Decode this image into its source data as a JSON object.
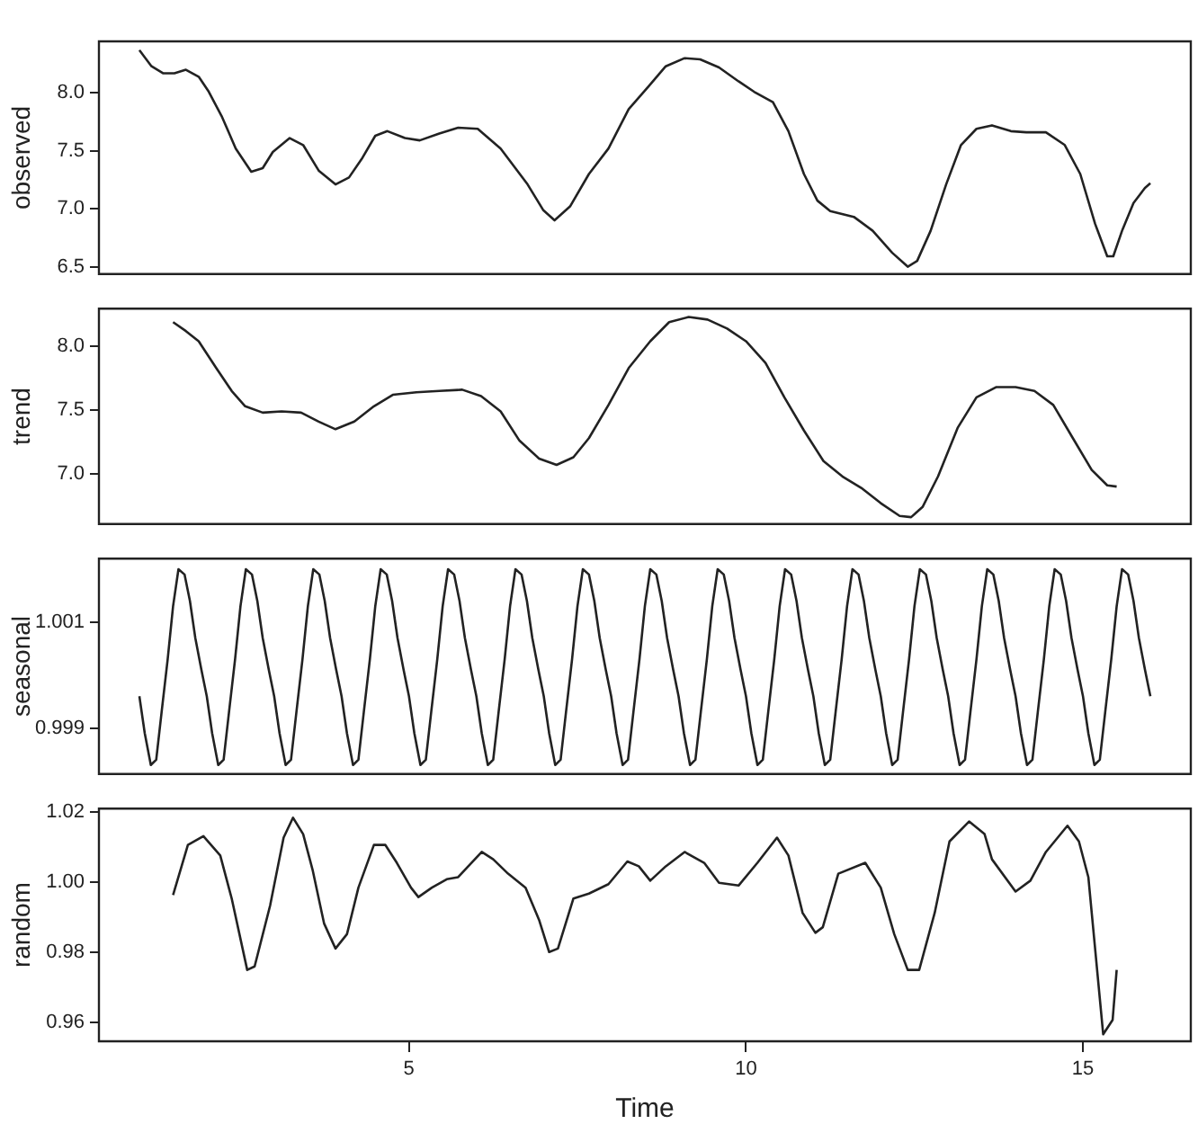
{
  "chart_data": [
    {
      "type": "line",
      "ylabel": "observed",
      "xlim": [
        0.4,
        16.6
      ],
      "xticks": [
        5,
        10,
        15
      ],
      "ylim": [
        6.436,
        8.445
      ],
      "yticks": [
        6.5,
        {
          "value": 7,
          "label": "7.0"
        },
        7.5,
        {
          "value": 8,
          "label": "8.0"
        }
      ],
      "tick_labels": "y",
      "series": [
        {
          "color": "#222222",
          "x": [
            1,
            1.18,
            1.35,
            1.52,
            1.69,
            1.88,
            2.03,
            2.22,
            2.43,
            2.66,
            2.83,
            2.98,
            3.23,
            3.43,
            3.66,
            3.91,
            4.11,
            4.31,
            4.5,
            4.68,
            4.94,
            5.16,
            5.45,
            5.73,
            6.02,
            6.36,
            6.76,
            6.99,
            7.16,
            7.39,
            7.67,
            7.96,
            8.26,
            8.56,
            8.81,
            9.09,
            9.32,
            9.6,
            9.89,
            10.12,
            10.4,
            10.63,
            10.86,
            11.06,
            11.25,
            11.6,
            11.88,
            12.17,
            12.4,
            12.54,
            12.74,
            12.97,
            13.19,
            13.42,
            13.65,
            13.93,
            14.16,
            14.45,
            14.73,
            14.96,
            15.18,
            15.36,
            15.45,
            15.58,
            15.75,
            15.92,
            16
          ],
          "values": [
            8.37,
            8.23,
            8.17,
            8.17,
            8.2,
            8.14,
            8.01,
            7.8,
            7.52,
            7.32,
            7.35,
            7.49,
            7.61,
            7.55,
            7.33,
            7.21,
            7.27,
            7.44,
            7.63,
            7.67,
            7.61,
            7.59,
            7.65,
            7.7,
            7.69,
            7.52,
            7.21,
            6.99,
            6.9,
            7.02,
            7.3,
            7.52,
            7.86,
            8.06,
            8.23,
            8.3,
            8.29,
            8.22,
            8.1,
            8.01,
            7.92,
            7.67,
            7.3,
            7.07,
            6.98,
            6.93,
            6.81,
            6.62,
            6.5,
            6.55,
            6.81,
            7.21,
            7.55,
            7.69,
            7.72,
            7.67,
            7.66,
            7.66,
            7.55,
            7.3,
            6.87,
            6.59,
            6.59,
            6.81,
            7.05,
            7.18,
            7.22
          ]
        }
      ]
    },
    {
      "type": "line",
      "ylabel": "trend",
      "xlim": [
        0.4,
        16.6
      ],
      "xticks": [
        5,
        10,
        15
      ],
      "ylim": [
        6.606,
        8.296
      ],
      "yticks": [
        {
          "value": 7,
          "label": "7.0"
        },
        7.5,
        {
          "value": 8,
          "label": "8.0"
        }
      ],
      "tick_labels": "y",
      "series": [
        {
          "color": "#222222",
          "x": [
            1.5,
            1.69,
            1.88,
            2.14,
            2.37,
            2.57,
            2.83,
            3.11,
            3.4,
            3.66,
            3.91,
            4.19,
            4.48,
            4.76,
            5.11,
            5.45,
            5.79,
            6.07,
            6.36,
            6.64,
            6.93,
            7.19,
            7.44,
            7.67,
            7.96,
            8.26,
            8.58,
            8.86,
            9.15,
            9.43,
            9.72,
            10,
            10.29,
            10.57,
            10.86,
            11.15,
            11.43,
            11.71,
            12,
            12.28,
            12.45,
            12.62,
            12.85,
            13.14,
            13.42,
            13.71,
            14,
            14.28,
            14.56,
            14.85,
            15.13,
            15.36,
            15.5
          ],
          "values": [
            8.19,
            8.12,
            8.04,
            7.83,
            7.65,
            7.53,
            7.48,
            7.49,
            7.48,
            7.41,
            7.35,
            7.41,
            7.53,
            7.62,
            7.64,
            7.65,
            7.66,
            7.61,
            7.49,
            7.26,
            7.12,
            7.07,
            7.13,
            7.28,
            7.54,
            7.83,
            8.04,
            8.19,
            8.23,
            8.21,
            8.14,
            8.04,
            7.87,
            7.6,
            7.34,
            7.1,
            6.98,
            6.89,
            6.77,
            6.67,
            6.66,
            6.74,
            6.98,
            7.36,
            7.6,
            7.68,
            7.68,
            7.65,
            7.54,
            7.28,
            7.03,
            6.91,
            6.9
          ]
        }
      ]
    },
    {
      "type": "line",
      "ylabel": "seasonal",
      "xlim": [
        0.4,
        16.6
      ],
      "xticks": [
        5,
        10,
        15
      ],
      "ylim": [
        0.99813,
        1.0022
      ],
      "yticks": [
        0.999,
        1.001
      ],
      "tick_labels": "y",
      "series": [
        {
          "color": "#222222",
          "x": [
            1,
            1.08,
            1.17,
            1.25,
            1.33,
            1.42,
            1.5,
            1.58,
            1.67,
            1.75,
            1.83,
            1.92,
            2,
            2.08,
            2.17,
            2.25,
            2.33,
            2.42,
            2.5,
            2.58,
            2.67,
            2.75,
            2.83,
            2.92,
            3,
            3.08,
            3.17,
            3.25,
            3.33,
            3.42,
            3.5,
            3.58,
            3.67,
            3.75,
            3.83,
            3.92,
            4,
            4.08,
            4.17,
            4.25,
            4.33,
            4.42,
            4.5,
            4.58,
            4.67,
            4.75,
            4.83,
            4.92,
            5,
            5.08,
            5.17,
            5.25,
            5.33,
            5.42,
            5.5,
            5.58,
            5.67,
            5.75,
            5.83,
            5.92,
            6,
            6.08,
            6.17,
            6.25,
            6.33,
            6.42,
            6.5,
            6.58,
            6.67,
            6.75,
            6.83,
            6.92,
            7,
            7.08,
            7.17,
            7.25,
            7.33,
            7.42,
            7.5,
            7.58,
            7.67,
            7.75,
            7.83,
            7.92,
            8,
            8.08,
            8.17,
            8.25,
            8.33,
            8.42,
            8.5,
            8.58,
            8.67,
            8.75,
            8.83,
            8.92,
            9,
            9.08,
            9.17,
            9.25,
            9.33,
            9.42,
            9.5,
            9.58,
            9.67,
            9.75,
            9.83,
            9.92,
            10,
            10.08,
            10.17,
            10.25,
            10.33,
            10.42,
            10.5,
            10.58,
            10.67,
            10.75,
            10.83,
            10.92,
            11,
            11.08,
            11.17,
            11.25,
            11.33,
            11.42,
            11.5,
            11.58,
            11.67,
            11.75,
            11.83,
            11.92,
            12,
            12.08,
            12.17,
            12.25,
            12.33,
            12.42,
            12.5,
            12.58,
            12.67,
            12.75,
            12.83,
            12.92,
            13,
            13.08,
            13.17,
            13.25,
            13.33,
            13.42,
            13.5,
            13.58,
            13.67,
            13.75,
            13.83,
            13.92,
            14,
            14.08,
            14.17,
            14.25,
            14.33,
            14.42,
            14.5,
            14.58,
            14.67,
            14.75,
            14.83,
            14.92,
            15,
            15.08,
            15.17,
            15.25,
            15.33,
            15.42,
            15.5,
            15.58,
            15.67,
            15.75,
            15.83,
            15.92,
            16
          ],
          "values": [
            0.9996,
            0.9989,
            0.9983,
            0.9984,
            0.9993,
            1.0003,
            1.0013,
            1.002,
            1.0019,
            1.0014,
            1.0007,
            1.0001,
            0.9996,
            0.9989,
            0.9983,
            0.9984,
            0.9993,
            1.0003,
            1.0013,
            1.002,
            1.0019,
            1.0014,
            1.0007,
            1.0001,
            0.9996,
            0.9989,
            0.9983,
            0.9984,
            0.9993,
            1.0003,
            1.0013,
            1.002,
            1.0019,
            1.0014,
            1.0007,
            1.0001,
            0.9996,
            0.9989,
            0.9983,
            0.9984,
            0.9993,
            1.0003,
            1.0013,
            1.002,
            1.0019,
            1.0014,
            1.0007,
            1.0001,
            0.9996,
            0.9989,
            0.9983,
            0.9984,
            0.9993,
            1.0003,
            1.0013,
            1.002,
            1.0019,
            1.0014,
            1.0007,
            1.0001,
            0.9996,
            0.9989,
            0.9983,
            0.9984,
            0.9993,
            1.0003,
            1.0013,
            1.002,
            1.0019,
            1.0014,
            1.0007,
            1.0001,
            0.9996,
            0.9989,
            0.9983,
            0.9984,
            0.9993,
            1.0003,
            1.0013,
            1.002,
            1.0019,
            1.0014,
            1.0007,
            1.0001,
            0.9996,
            0.9989,
            0.9983,
            0.9984,
            0.9993,
            1.0003,
            1.0013,
            1.002,
            1.0019,
            1.0014,
            1.0007,
            1.0001,
            0.9996,
            0.9989,
            0.9983,
            0.9984,
            0.9993,
            1.0003,
            1.0013,
            1.002,
            1.0019,
            1.0014,
            1.0007,
            1.0001,
            0.9996,
            0.9989,
            0.9983,
            0.9984,
            0.9993,
            1.0003,
            1.0013,
            1.002,
            1.0019,
            1.0014,
            1.0007,
            1.0001,
            0.9996,
            0.9989,
            0.9983,
            0.9984,
            0.9993,
            1.0003,
            1.0013,
            1.002,
            1.0019,
            1.0014,
            1.0007,
            1.0001,
            0.9996,
            0.9989,
            0.9983,
            0.9984,
            0.9993,
            1.0003,
            1.0013,
            1.002,
            1.0019,
            1.0014,
            1.0007,
            1.0001,
            0.9996,
            0.9989,
            0.9983,
            0.9984,
            0.9993,
            1.0003,
            1.0013,
            1.002,
            1.0019,
            1.0014,
            1.0007,
            1.0001,
            0.9996,
            0.9989,
            0.9983,
            0.9984,
            0.9993,
            1.0003,
            1.0013,
            1.002,
            1.0019,
            1.0014,
            1.0007,
            1.0001,
            0.9996,
            0.9989,
            0.9983,
            0.9984,
            0.9993,
            1.0003,
            1.0013,
            1.002,
            1.0019,
            1.0014,
            1.0007,
            1.0001,
            0.9996
          ]
        }
      ]
    },
    {
      "type": "line",
      "ylabel": "random",
      "xlabel": "Time",
      "xlim": [
        0.4,
        16.6
      ],
      "xticks": [
        5,
        10,
        15
      ],
      "ylim": [
        0.9545,
        1.021
      ],
      "yticks": [
        0.96,
        0.98,
        {
          "value": 1,
          "label": "1.00"
        },
        1.02
      ],
      "series": [
        {
          "color": "#222222",
          "x": [
            1.5,
            1.72,
            1.95,
            2.2,
            2.37,
            2.6,
            2.71,
            2.94,
            3.14,
            3.28,
            3.43,
            3.57,
            3.74,
            3.91,
            4.08,
            4.25,
            4.48,
            4.65,
            4.82,
            5.03,
            5.14,
            5.34,
            5.56,
            5.73,
            6.08,
            6.25,
            6.47,
            6.73,
            6.93,
            7.08,
            7.21,
            7.44,
            7.67,
            7.96,
            8.24,
            8.41,
            8.58,
            8.81,
            9.09,
            9.38,
            9.6,
            9.89,
            10.17,
            10.46,
            10.63,
            10.84,
            11.03,
            11.14,
            11.37,
            11.77,
            12,
            12.2,
            12.4,
            12.57,
            12.8,
            13.02,
            13.31,
            13.54,
            13.65,
            14,
            14.22,
            14.45,
            14.77,
            14.94,
            15.08,
            15.3,
            15.44,
            15.5
          ],
          "values": [
            0.9963,
            1.0106,
            1.0131,
            1.0076,
            0.9953,
            0.9749,
            0.9759,
            0.9933,
            1.0127,
            1.0184,
            1.0137,
            1.0035,
            0.9882,
            0.981,
            0.9851,
            0.9984,
            1.0106,
            1.0106,
            1.0055,
            0.9984,
            0.9957,
            0.9984,
            1.0008,
            1.0014,
            1.0086,
            1.0065,
            1.0024,
            0.9984,
            0.9892,
            0.98,
            0.981,
            0.9953,
            0.9967,
            0.9994,
            1.0059,
            1.0045,
            1.0004,
            1.0045,
            1.0086,
            1.0055,
            0.9998,
            0.999,
            1.0055,
            1.0127,
            1.0076,
            0.9912,
            0.9855,
            0.9871,
            1.0024,
            1.0055,
            0.9984,
            0.9851,
            0.9749,
            0.9749,
            0.9912,
            1.0116,
            1.0173,
            1.0137,
            1.0065,
            0.9973,
            1.0004,
            1.0086,
            1.0161,
            1.0116,
            1.0014,
            0.9565,
            0.9606,
            0.9749
          ]
        }
      ]
    }
  ]
}
